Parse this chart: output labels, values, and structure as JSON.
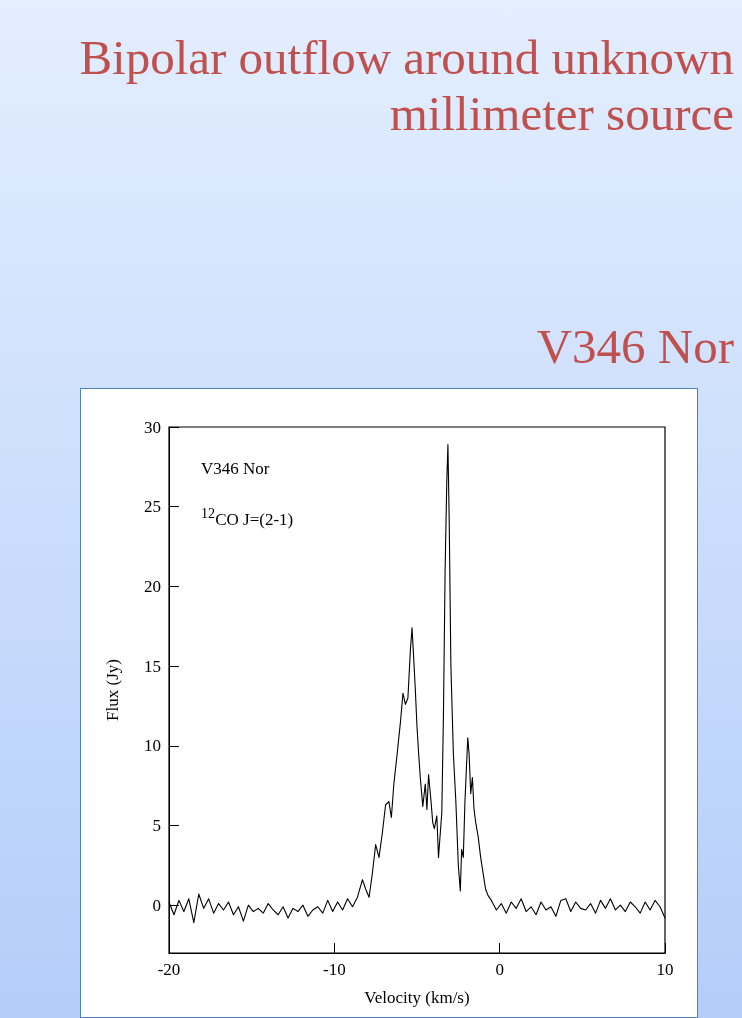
{
  "chart_data": {
    "type": "line",
    "title": "Bipolar outflow around unknown millimeter source",
    "subtitle": "V346 Nor",
    "xlabel": "Velocity (km/s)",
    "ylabel": "Flux (Jy)",
    "annotations": [
      "V346 Nor",
      "$^{12}$CO J=(2-1)"
    ],
    "xlim": [
      -20,
      10
    ],
    "xticks": [
      -20,
      -10,
      0,
      10
    ],
    "ylim": [
      -3,
      30
    ],
    "yticks": [
      0,
      5,
      10,
      15,
      20,
      25,
      30
    ],
    "grid": false,
    "marker": "none",
    "line_style": "solid",
    "series": [
      {
        "color": "#000000",
        "x": [
          -20,
          -19.7,
          -19.4,
          -19.1,
          -18.8,
          -18.5,
          -18.2,
          -17.9,
          -17.6,
          -17.3,
          -17,
          -16.7,
          -16.4,
          -16.1,
          -15.8,
          -15.5,
          -15.2,
          -14.9,
          -14.6,
          -14.3,
          -14,
          -13.7,
          -13.4,
          -13.1,
          -12.8,
          -12.5,
          -12.2,
          -11.9,
          -11.6,
          -11.3,
          -11,
          -10.7,
          -10.4,
          -10.1,
          -9.8,
          -9.5,
          -9.2,
          -8.9,
          -8.6,
          -8.3,
          -8.1,
          -7.9,
          -7.7,
          -7.5,
          -7.3,
          -7.1,
          -6.9,
          -6.7,
          -6.55,
          -6.4,
          -6.2,
          -6,
          -5.85,
          -5.7,
          -5.55,
          -5.4,
          -5.3,
          -5.2,
          -5.1,
          -5,
          -4.9,
          -4.8,
          -4.65,
          -4.5,
          -4.4,
          -4.3,
          -4.15,
          -4.05,
          -3.95,
          -3.8,
          -3.7,
          -3.6,
          -3.5,
          -3.4,
          -3.3,
          -3.2,
          -3.13,
          -3.05,
          -2.95,
          -2.8,
          -2.65,
          -2.5,
          -2.38,
          -2.3,
          -2.2,
          -2.1,
          -1.93,
          -1.85,
          -1.75,
          -1.65,
          -1.55,
          -1.45,
          -1.3,
          -1.15,
          -1,
          -0.85,
          -0.7,
          -0.5,
          -0.2,
          0.1,
          0.4,
          0.7,
          1,
          1.3,
          1.6,
          1.9,
          2.2,
          2.5,
          2.8,
          3.1,
          3.4,
          3.7,
          4,
          4.3,
          4.6,
          4.9,
          5.2,
          5.5,
          5.8,
          6.1,
          6.4,
          6.7,
          7,
          7.3,
          7.6,
          7.9,
          8.2,
          8.5,
          8.8,
          9.1,
          9.4,
          9.7,
          10
        ],
        "values": [
          0.2,
          -0.6,
          0.3,
          -0.4,
          0.4,
          -1.1,
          0.7,
          -0.2,
          0.4,
          -0.5,
          0.1,
          -0.3,
          0.2,
          -0.6,
          -0.1,
          -1.0,
          0.0,
          -0.4,
          -0.2,
          -0.5,
          0.1,
          -0.3,
          -0.6,
          -0.1,
          -0.8,
          -0.2,
          -0.4,
          0.0,
          -0.7,
          -0.3,
          -0.1,
          -0.5,
          0.3,
          -0.4,
          0.2,
          -0.3,
          0.4,
          -0.1,
          0.5,
          1.6,
          1.0,
          0.5,
          2.0,
          3.8,
          3.0,
          4.5,
          6.3,
          6.5,
          5.5,
          7.6,
          9.5,
          11.5,
          13.3,
          12.6,
          13.0,
          16.0,
          17.4,
          15.5,
          13.5,
          11.2,
          9.5,
          8.0,
          6.2,
          7.6,
          6.0,
          8.2,
          6.5,
          5.2,
          4.8,
          5.6,
          3.0,
          4.4,
          5.8,
          12.0,
          21.0,
          26.5,
          28.9,
          24.0,
          15.0,
          9.5,
          6.5,
          2.5,
          0.9,
          3.5,
          3.0,
          6.5,
          10.5,
          9.5,
          7.0,
          8.0,
          6.0,
          5.2,
          4.3,
          3.0,
          2.0,
          1.0,
          0.6,
          0.3,
          -0.3,
          0.1,
          -0.5,
          0.2,
          -0.2,
          0.4,
          -0.4,
          -0.1,
          -0.6,
          0.2,
          -0.3,
          -0.1,
          -0.7,
          0.3,
          0.4,
          -0.4,
          0.2,
          -0.2,
          -0.3,
          0.1,
          -0.5,
          0.3,
          -0.2,
          0.4,
          -0.3,
          0.0,
          -0.4,
          0.2,
          -0.1,
          -0.5,
          0.2,
          -0.3,
          0.3,
          -0.1,
          -0.8
        ]
      }
    ]
  }
}
